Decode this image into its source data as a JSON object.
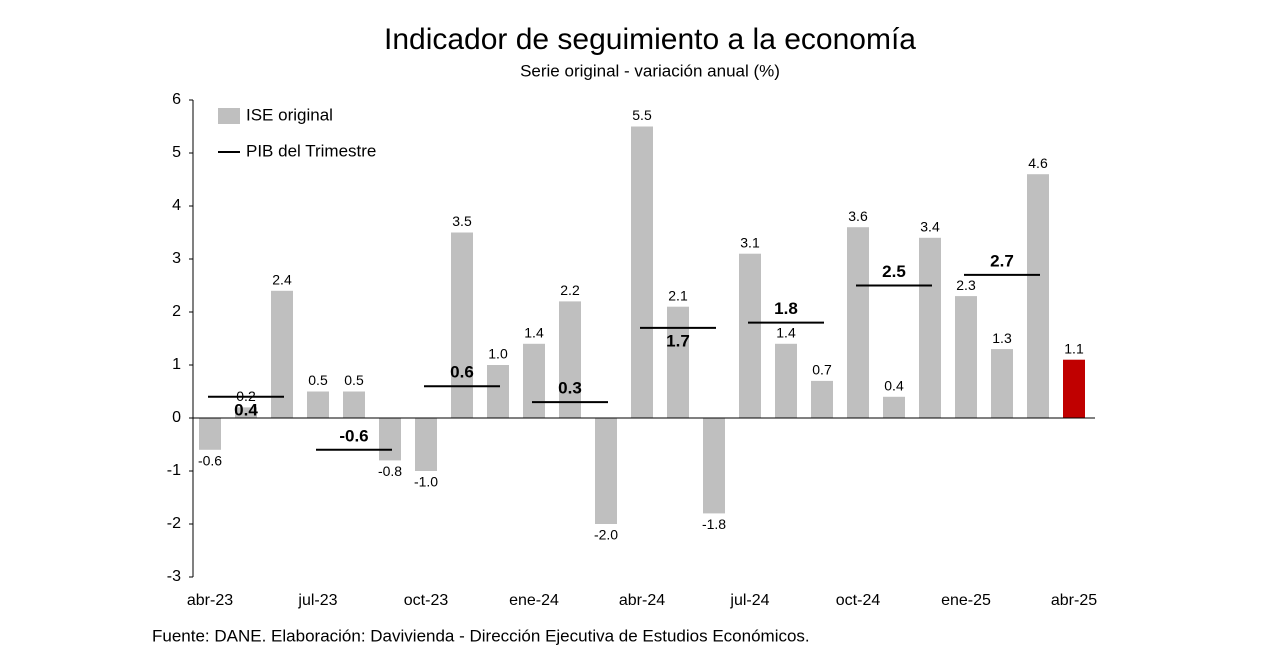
{
  "chart_data": {
    "type": "bar",
    "title": "Indicador de seguimiento a la economía",
    "subtitle": "Serie original - variación anual (%)",
    "source": "Fuente: DANE. Elaboración: Davivienda - Dirección Ejecutiva de Estudios Económicos.",
    "categories": [
      "abr-23",
      null,
      null,
      "jul-23",
      null,
      null,
      "oct-23",
      null,
      null,
      "ene-24",
      null,
      null,
      "abr-24",
      null,
      null,
      "jul-24",
      null,
      null,
      "oct-24",
      null,
      null,
      "ene-25",
      null,
      null,
      "abr-25"
    ],
    "series": [
      {
        "name": "ISE original",
        "color": "#bfbfbf",
        "colors": [
          "#bfbfbf",
          "#bfbfbf",
          "#bfbfbf",
          "#bfbfbf",
          "#bfbfbf",
          "#bfbfbf",
          "#bfbfbf",
          "#bfbfbf",
          "#bfbfbf",
          "#bfbfbf",
          "#bfbfbf",
          "#bfbfbf",
          "#bfbfbf",
          "#bfbfbf",
          "#bfbfbf",
          "#bfbfbf",
          "#bfbfbf",
          "#bfbfbf",
          "#bfbfbf",
          "#bfbfbf",
          "#bfbfbf",
          "#bfbfbf",
          "#bfbfbf",
          "#bfbfbf",
          "#c00000"
        ],
        "values": [
          -0.6,
          0.2,
          2.4,
          0.5,
          0.5,
          -0.8,
          -1.0,
          3.5,
          1.0,
          1.4,
          2.2,
          -2.0,
          5.5,
          2.1,
          -1.8,
          3.1,
          1.4,
          0.7,
          3.6,
          0.4,
          3.4,
          2.3,
          1.3,
          4.6,
          1.1
        ],
        "value_labels": [
          "-0.6",
          "0.2",
          "2.4",
          "0.5",
          "0.5",
          "-0.8",
          "-1.0",
          "3.5",
          "1.0",
          "1.4",
          "2.2",
          "-2.0",
          "5.5",
          "2.1",
          "-1.8",
          "3.1",
          "1.4",
          "0.7",
          "3.6",
          "0.4",
          "3.4",
          "2.3",
          "1.3",
          "4.6",
          "1.1"
        ]
      },
      {
        "name": "PIB del Trimestre",
        "type": "step",
        "color": "#000000",
        "values": [
          null,
          0.4,
          null,
          null,
          -0.6,
          null,
          null,
          0.6,
          null,
          null,
          0.3,
          null,
          null,
          1.7,
          null,
          null,
          1.8,
          null,
          null,
          2.5,
          null,
          null,
          2.7,
          null,
          null
        ]
      }
    ],
    "ylim": [
      -3,
      6
    ],
    "yticks": [
      -3,
      -2,
      -1,
      0,
      1,
      2,
      3,
      4,
      5,
      6
    ],
    "grid": false,
    "legend": "top-left"
  }
}
